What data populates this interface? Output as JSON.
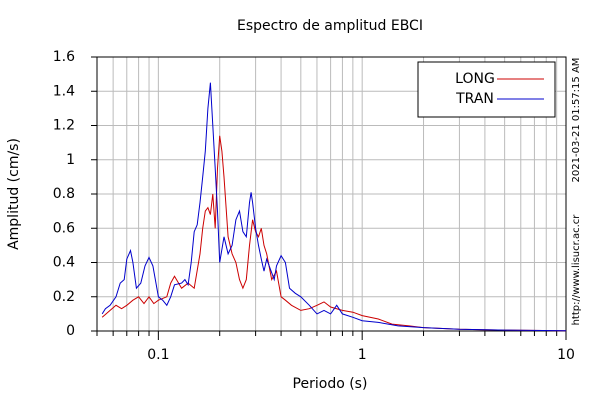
{
  "chart_data": {
    "type": "line",
    "title": "Espectro de amplitud EBCI",
    "x_label": "Periodo (s)",
    "y_label": "Amplitud (cm/s)",
    "annotations": [
      "2021-03-21 01:57:15 AM",
      "http://www.lisucr.ac.cr"
    ],
    "x_log": true,
    "grid": true,
    "legend": "upper right",
    "xlim": [
      0.05,
      10
    ],
    "xticks": [
      0.1,
      1,
      10
    ],
    "xminor": [
      0.05,
      0.06,
      0.07,
      0.08,
      0.09,
      0.2,
      0.3,
      0.4,
      0.5,
      0.6,
      0.7,
      0.8,
      0.9,
      2,
      3,
      4,
      5,
      6,
      7,
      8,
      9
    ],
    "ylim": [
      0,
      1.6
    ],
    "yticks": [
      0,
      0.2,
      0.4,
      0.6,
      0.8,
      1,
      1.2,
      1.4,
      1.6
    ],
    "series": [
      {
        "name": "LONG",
        "color": "#cc0000",
        "x": [
          0.053,
          0.058,
          0.062,
          0.066,
          0.07,
          0.075,
          0.08,
          0.085,
          0.09,
          0.095,
          0.1,
          0.11,
          0.115,
          0.12,
          0.13,
          0.14,
          0.15,
          0.16,
          0.165,
          0.17,
          0.175,
          0.18,
          0.185,
          0.19,
          0.195,
          0.2,
          0.205,
          0.21,
          0.22,
          0.23,
          0.24,
          0.25,
          0.26,
          0.27,
          0.28,
          0.29,
          0.3,
          0.31,
          0.32,
          0.33,
          0.34,
          0.36,
          0.38,
          0.4,
          0.42,
          0.45,
          0.5,
          0.55,
          0.6,
          0.65,
          0.7,
          0.8,
          0.9,
          1.0,
          1.2,
          1.4,
          1.7,
          2,
          3,
          5,
          10
        ],
        "values": [
          0.08,
          0.12,
          0.15,
          0.13,
          0.15,
          0.18,
          0.2,
          0.16,
          0.2,
          0.16,
          0.18,
          0.2,
          0.28,
          0.32,
          0.25,
          0.28,
          0.25,
          0.45,
          0.6,
          0.7,
          0.72,
          0.68,
          0.8,
          0.6,
          0.95,
          1.14,
          1.05,
          0.9,
          0.55,
          0.45,
          0.4,
          0.3,
          0.25,
          0.3,
          0.5,
          0.65,
          0.58,
          0.55,
          0.6,
          0.5,
          0.45,
          0.3,
          0.35,
          0.2,
          0.18,
          0.15,
          0.12,
          0.13,
          0.15,
          0.17,
          0.14,
          0.12,
          0.11,
          0.09,
          0.07,
          0.04,
          0.03,
          0.02,
          0.01,
          0.005,
          0.002
        ]
      },
      {
        "name": "TRAN",
        "color": "#0000cc",
        "x": [
          0.053,
          0.055,
          0.058,
          0.062,
          0.065,
          0.068,
          0.07,
          0.073,
          0.075,
          0.078,
          0.082,
          0.086,
          0.09,
          0.094,
          0.1,
          0.105,
          0.11,
          0.115,
          0.12,
          0.13,
          0.135,
          0.14,
          0.145,
          0.15,
          0.155,
          0.16,
          0.165,
          0.17,
          0.175,
          0.18,
          0.185,
          0.19,
          0.195,
          0.2,
          0.21,
          0.22,
          0.23,
          0.24,
          0.25,
          0.26,
          0.27,
          0.28,
          0.285,
          0.29,
          0.3,
          0.31,
          0.32,
          0.33,
          0.34,
          0.35,
          0.37,
          0.38,
          0.4,
          0.42,
          0.44,
          0.47,
          0.5,
          0.55,
          0.6,
          0.65,
          0.7,
          0.75,
          0.8,
          0.9,
          1.0,
          1.2,
          1.5,
          2,
          3,
          5,
          10
        ],
        "values": [
          0.1,
          0.13,
          0.15,
          0.2,
          0.28,
          0.3,
          0.42,
          0.47,
          0.4,
          0.25,
          0.28,
          0.38,
          0.43,
          0.38,
          0.2,
          0.18,
          0.15,
          0.2,
          0.27,
          0.28,
          0.3,
          0.27,
          0.4,
          0.58,
          0.62,
          0.75,
          0.9,
          1.05,
          1.3,
          1.45,
          1.2,
          0.95,
          0.7,
          0.4,
          0.55,
          0.45,
          0.5,
          0.65,
          0.7,
          0.58,
          0.55,
          0.75,
          0.81,
          0.75,
          0.6,
          0.5,
          0.42,
          0.35,
          0.42,
          0.38,
          0.3,
          0.38,
          0.44,
          0.4,
          0.25,
          0.22,
          0.2,
          0.15,
          0.1,
          0.12,
          0.1,
          0.15,
          0.1,
          0.08,
          0.06,
          0.05,
          0.03,
          0.02,
          0.01,
          0.005,
          0.002
        ]
      }
    ]
  }
}
